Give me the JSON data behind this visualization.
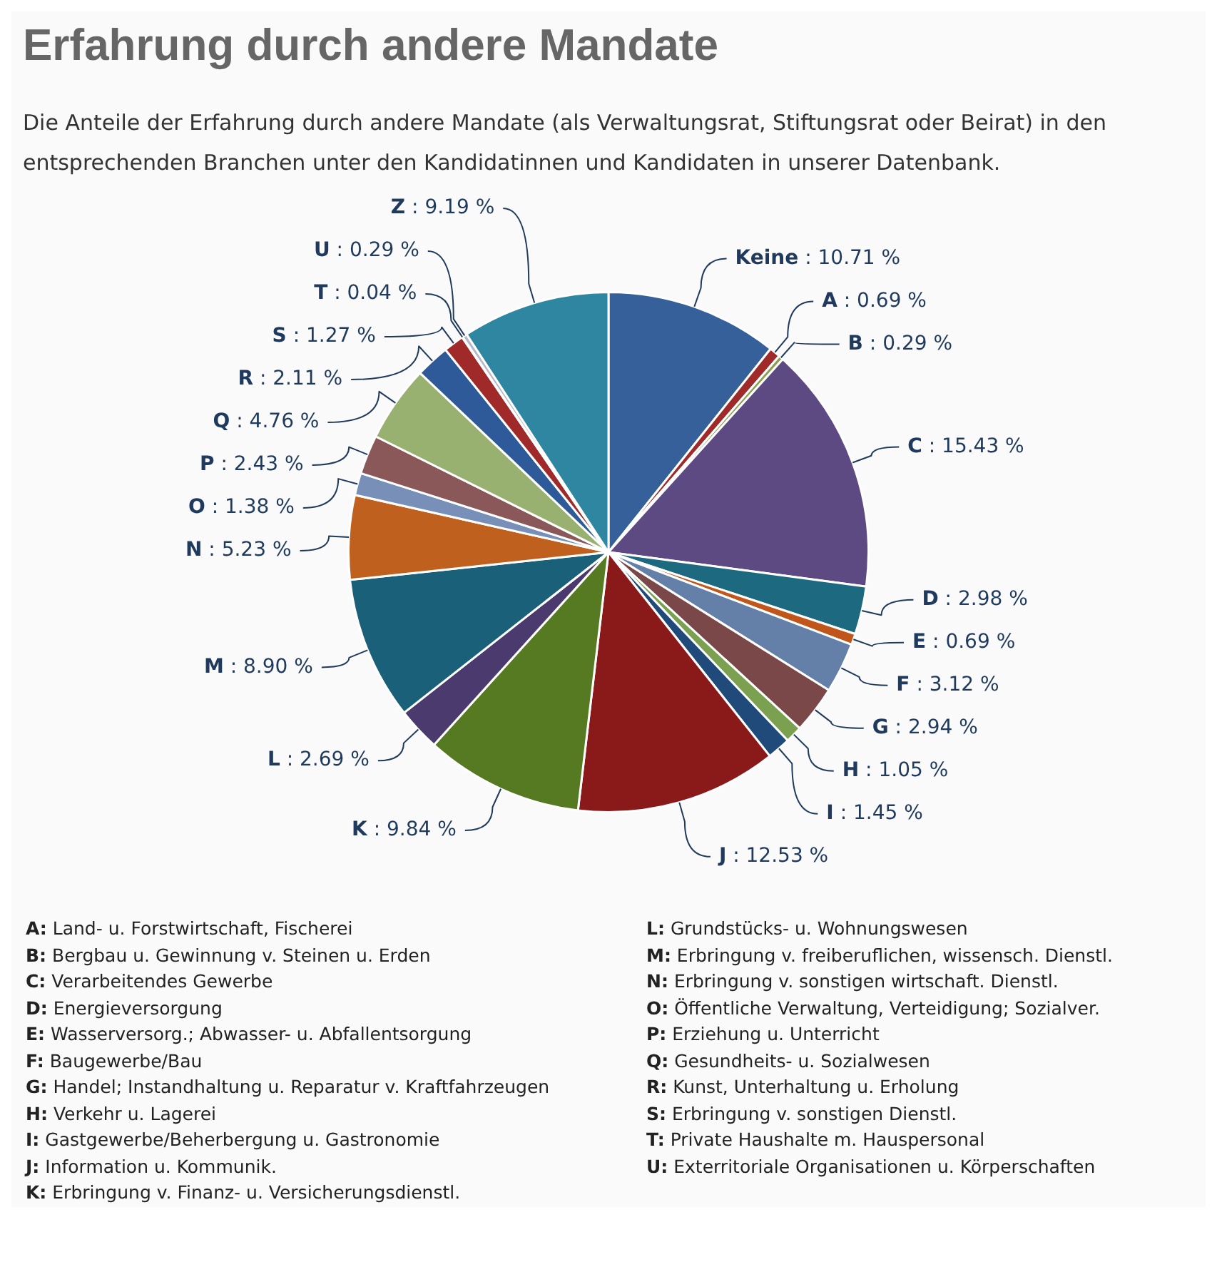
{
  "chart_data": {
    "type": "pie",
    "title": "Erfahrung durch andere Mandate",
    "subtitle": "Die Anteile der Erfahrung durch andere Mandate (als Verwaltungsrat, Stiftungsrat oder Beirat) in den entsprechenden Branchen unter den Kandidatinnen und Kandidaten in unserer Datenbank.",
    "categories": [
      "Keine",
      "A",
      "B",
      "C",
      "D",
      "E",
      "F",
      "G",
      "H",
      "I",
      "J",
      "K",
      "L",
      "M",
      "N",
      "O",
      "P",
      "Q",
      "R",
      "S",
      "T",
      "U",
      "Z"
    ],
    "values": [
      10.71,
      0.69,
      0.29,
      15.43,
      2.98,
      0.69,
      3.12,
      2.94,
      1.05,
      1.45,
      12.53,
      9.84,
      2.69,
      8.9,
      5.23,
      1.38,
      2.43,
      4.76,
      2.11,
      1.27,
      0.04,
      0.29,
      9.19
    ],
    "value_labels": [
      ": 10.71 %",
      ": 0.69 %",
      ": 0.29 %",
      ": 15.43 %",
      ": 2.98 %",
      ": 0.69 %",
      ": 3.12 %",
      ": 2.94 %",
      ": 1.05 %",
      ": 1.45 %",
      ": 12.53 %",
      ": 9.84 %",
      ": 2.69 %",
      ": 8.90 %",
      ": 5.23 %",
      ": 1.38 %",
      ": 2.43 %",
      ": 4.76 %",
      ": 2.11 %",
      ": 1.27 %",
      ": 0.04 %",
      ": 0.29 %",
      ": 9.19 %"
    ],
    "colors": [
      "#35609a",
      "#a02a2a",
      "#8aa050",
      "#5e4a82",
      "#1d6a80",
      "#c0561a",
      "#6580a8",
      "#7a4848",
      "#7aa050",
      "#1f4a7a",
      "#8a1a1a",
      "#557a22",
      "#4a3a6e",
      "#1a6078",
      "#c0601e",
      "#7890b8",
      "#8a5858",
      "#98b070",
      "#2e5a9a",
      "#a02a2a",
      "#6a4a90",
      "#b8b8c8",
      "#2e86a0"
    ],
    "annotations": [
      "A: Land- u. Forstwirtschaft, Fischerei",
      "B: Bergbau u. Gewinnung v. Steinen u. Erden",
      "C: Verarbeitendes Gewerbe",
      "D: Energieversorgung",
      "E: Wasserversorg.; Abwasser- u. Abfallentsorgung",
      "F: Baugewerbe/Bau",
      "G: Handel; Instandhaltung u. Reparatur v. Kraftfahrzeugen",
      "H: Verkehr u. Lagerei",
      "I: Gastgewerbe/Beherbergung u. Gastronomie",
      "J: Information u. Kommunik.",
      "K: Erbringung v. Finanz- u. Versicherungsdienstl.",
      "L: Grundstücks- u. Wohnungswesen",
      "M: Erbringung v. freiberuflichen, wissensch. Dienstl.",
      "N: Erbringung v. sonstigen wirtschaft. Dienstl.",
      "O: Öffentliche Verwaltung, Verteidigung; Sozialver.",
      "P: Erziehung u. Unterricht",
      "Q: Gesundheits- u. Sozialwesen",
      "R: Kunst, Unterhaltung u. Erholung",
      "S: Erbringung v. sonstigen Dienstl.",
      "T: Private Haushalte m. Hauspersonal",
      "U: Exterritoriale Organisationen u. Körperschaften"
    ]
  }
}
